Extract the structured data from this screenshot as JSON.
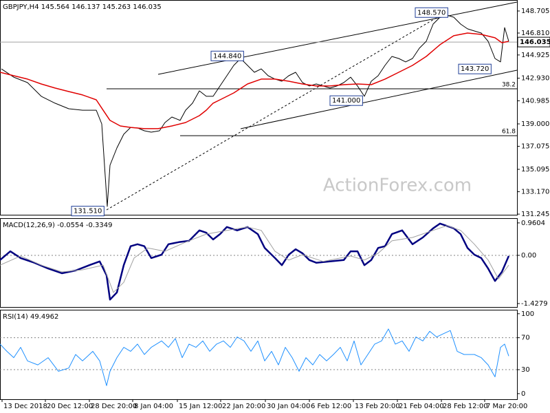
{
  "watermark": "ActionForex.com",
  "chart_data": [
    {
      "type": "line",
      "title": "GBPJPY,H4  145.564 146.137 145.263 146.035",
      "xlim": [
        0,
        188
      ],
      "ylim": [
        131.19,
        149.65
      ],
      "yticks": [
        148.705,
        {
          "value": 146.81,
          "label": "146.810"
        },
        144.925,
        {
          "value": 142.93,
          "label": "142.930"
        },
        140.985,
        {
          "value": 139.0,
          "label": "139.000"
        },
        137.075,
        135.095,
        {
          "value": 133.17,
          "label": "133.170"
        },
        131.245
      ],
      "grid": false,
      "series": [
        {
          "color": "#000000",
          "width": 1,
          "x": [
            0.5,
            5,
            10,
            15,
            20,
            25,
            30,
            35,
            37,
            39,
            40,
            42.5,
            45,
            47.5,
            50,
            52.5,
            55,
            58,
            60,
            62.5,
            65.5,
            67.5,
            70,
            72.5,
            75,
            77.5,
            80,
            82.5,
            85,
            87.5,
            90,
            92.5,
            95,
            97.5,
            100,
            102.5,
            105,
            107.5,
            110,
            112.5,
            115,
            117.5,
            120,
            122.5,
            125,
            127.5,
            130,
            132.5,
            135,
            137.5,
            140,
            142.5,
            145,
            147.5,
            150,
            152.5,
            155,
            157.5,
            160,
            162.5,
            165,
            167.5,
            170,
            172.5,
            175,
            177.5,
            180,
            182,
            183.5,
            185
          ],
          "values": [
            143.73,
            143.02,
            142.55,
            141.37,
            140.78,
            140.3,
            140.18,
            140.18,
            139.0,
            131.9,
            135.45,
            136.93,
            138.11,
            138.7,
            138.65,
            138.41,
            138.29,
            138.41,
            139.12,
            139.59,
            139.3,
            140.18,
            140.78,
            141.84,
            141.37,
            141.37,
            142.26,
            143.14,
            144.03,
            144.62,
            144.03,
            143.44,
            143.73,
            143.14,
            142.85,
            142.67,
            143.14,
            143.44,
            142.55,
            142.26,
            142.43,
            142.26,
            142.08,
            142.26,
            142.55,
            143.02,
            142.26,
            141.37,
            142.67,
            143.14,
            144.03,
            144.8,
            144.62,
            144.33,
            144.62,
            145.51,
            146.1,
            147.58,
            148.17,
            148.35,
            148.17,
            147.58,
            147.17,
            146.99,
            146.81,
            146.1,
            144.62,
            144.33,
            147.28,
            146.1
          ]
        },
        {
          "color": "#e00000",
          "width": 1.5,
          "x": [
            0,
            5,
            10,
            15,
            20,
            25,
            30,
            35,
            37.5,
            40,
            43.75,
            47.5,
            52.5,
            57.5,
            62.5,
            67.5,
            72.5,
            75,
            77.5,
            80,
            85,
            90,
            95,
            100,
            105,
            110,
            115,
            120,
            125,
            130,
            135,
            140,
            145,
            150,
            155,
            160,
            165,
            170,
            175,
            180,
            182.5,
            185
          ],
          "values": [
            143.44,
            143.14,
            142.85,
            142.43,
            142.08,
            141.78,
            141.49,
            141.07,
            140.18,
            139.3,
            138.82,
            138.7,
            138.59,
            138.59,
            138.82,
            139.12,
            139.71,
            140.18,
            140.78,
            141.07,
            141.66,
            142.43,
            142.85,
            142.85,
            142.67,
            142.43,
            142.26,
            142.26,
            142.37,
            142.43,
            142.37,
            142.85,
            143.44,
            144.03,
            144.8,
            145.81,
            146.58,
            146.81,
            146.69,
            146.4,
            145.98,
            146.1
          ]
        }
      ],
      "annotations": [
        {
          "x": 151,
          "value": 148.57,
          "label": "148.570"
        },
        {
          "x": 76.75,
          "value": 144.84,
          "label": "144.840"
        },
        {
          "x": 120,
          "value": 141.0,
          "label": "141.000"
        },
        {
          "x": 166.75,
          "value": 143.72,
          "label": "143.720"
        },
        {
          "x": 26,
          "value": 131.51,
          "label": "131.510"
        }
      ],
      "levels": [
        {
          "x": 38.75,
          "value": 142.02,
          "label": "38.2"
        },
        {
          "x": 65.5,
          "value": 137.99,
          "label": "61.8"
        }
      ],
      "last_price": 146.035
    },
    {
      "type": "line",
      "title": "MACD(12,26,9) -0.0554 -0.3349",
      "xlim": [
        0,
        188
      ],
      "ylim": [
        -1.53,
        1.1
      ],
      "yticks": [
        0.9604,
        {
          "value": 0,
          "label": "0.00"
        },
        -1.4279
      ],
      "grid": true,
      "series": [
        {
          "color": "#000080",
          "width": 2.5,
          "x": [
            0,
            3.75,
            7.5,
            12.5,
            17.5,
            22.5,
            27.5,
            32.5,
            36.25,
            38.75,
            40,
            42.5,
            45,
            47.5,
            50,
            52.5,
            55,
            58.75,
            61.25,
            65,
            68.75,
            72.5,
            75,
            77.5,
            80,
            82.5,
            86.25,
            90,
            93.75,
            96.25,
            100,
            102.5,
            105,
            107.5,
            110,
            112.5,
            115,
            120,
            125,
            127.5,
            130,
            132.5,
            135,
            137.5,
            140,
            142.5,
            146.25,
            150,
            153.75,
            157.5,
            160,
            165,
            167.5,
            170,
            172.5,
            175,
            177.5,
            180,
            182.5,
            185
          ],
          "values": [
            -0.14,
            0.12,
            -0.08,
            -0.22,
            -0.39,
            -0.53,
            -0.45,
            -0.29,
            -0.18,
            -0.59,
            -1.31,
            -1.1,
            -0.29,
            0.27,
            0.33,
            0.27,
            -0.08,
            0.02,
            0.33,
            0.39,
            0.43,
            0.74,
            0.67,
            0.47,
            0.63,
            0.84,
            0.74,
            0.84,
            0.63,
            0.22,
            -0.08,
            -0.29,
            0.02,
            0.18,
            0.06,
            -0.14,
            -0.22,
            -0.18,
            -0.14,
            0.12,
            0.12,
            -0.29,
            -0.14,
            0.22,
            0.27,
            0.63,
            0.74,
            0.33,
            0.53,
            0.8,
            0.94,
            0.8,
            0.63,
            0.22,
            0.02,
            -0.08,
            -0.39,
            -0.76,
            -0.49,
            -0.02
          ]
        },
        {
          "color": "#a0a0a0",
          "width": 1,
          "x": [
            0,
            7.5,
            15,
            22.5,
            30,
            37.5,
            41.25,
            45,
            48.75,
            53.75,
            60,
            67.5,
            75,
            82.5,
            90,
            95,
            100,
            105,
            110,
            117.5,
            127.5,
            132.5,
            137.5,
            142.5,
            150,
            157.5,
            162.5,
            167.5,
            172.5,
            177.5,
            181.25,
            185
          ],
          "values": [
            -0.29,
            -0.02,
            -0.29,
            -0.49,
            -0.43,
            -0.29,
            -1.1,
            -0.8,
            -0.08,
            0.22,
            0.12,
            0.39,
            0.63,
            0.74,
            0.84,
            0.74,
            0.12,
            -0.14,
            0.02,
            -0.18,
            -0.02,
            -0.14,
            0.06,
            0.43,
            0.53,
            0.74,
            0.88,
            0.74,
            0.33,
            -0.14,
            -0.7,
            -0.29
          ]
        }
      ]
    },
    {
      "type": "line",
      "title": "RSI(14) 49.4962",
      "xlim": [
        0,
        188
      ],
      "ylim": [
        -7,
        105
      ],
      "yticks": [
        100,
        70,
        30,
        0
      ],
      "grid": true,
      "xticks": [
        {
          "value": 0.75,
          "label": "13 Dec 2018"
        },
        {
          "value": 16.5,
          "label": "20 Dec 12:00"
        },
        {
          "value": 32.5,
          "label": "28 Dec 20:00"
        },
        {
          "value": 48.25,
          "label": "8 Jan 04:00"
        },
        {
          "value": 64.5,
          "label": "15 Jan 12:00"
        },
        {
          "value": 80.25,
          "label": "22 Jan 20:00"
        },
        {
          "value": 96.5,
          "label": "30 Jan 04:00"
        },
        {
          "value": 112.5,
          "label": "6 Feb 12:00"
        },
        {
          "value": 128.5,
          "label": "13 Feb 20:00"
        },
        {
          "value": 144.5,
          "label": "21 Feb 04:00"
        },
        {
          "value": 160.5,
          "label": "28 Feb 12:00"
        },
        {
          "value": 176.25,
          "label": "7 Mar 20:00"
        }
      ],
      "series": [
        {
          "color": "#1e90ff",
          "width": 1,
          "x": [
            0,
            2.5,
            5,
            7.5,
            10,
            13.75,
            17.5,
            21.25,
            25,
            27.5,
            30,
            33.75,
            36.25,
            38.75,
            40,
            42.5,
            45,
            47.5,
            50,
            52.5,
            55,
            58.75,
            61.25,
            63.75,
            66.25,
            68.75,
            71.25,
            73.75,
            76.25,
            78.75,
            81.25,
            83.75,
            86.25,
            88.75,
            91.25,
            93.75,
            96.25,
            98.75,
            101.25,
            103.75,
            106.25,
            108.75,
            111.25,
            113.75,
            116.25,
            118.75,
            121.25,
            123.75,
            126.25,
            128.75,
            131.25,
            133.75,
            136.25,
            138.75,
            141.25,
            143.75,
            146.25,
            148.75,
            151.25,
            153.75,
            156.25,
            158.75,
            161.25,
            163.75,
            166.25,
            168.75,
            172.5,
            175,
            177.5,
            180,
            182,
            183.5,
            185
          ],
          "values": [
            62,
            53,
            45,
            58,
            41,
            36,
            45,
            28,
            32,
            49,
            41,
            53,
            41,
            10,
            28,
            45,
            58,
            53,
            62,
            49,
            58,
            66,
            58,
            69,
            45,
            62,
            58,
            66,
            53,
            62,
            66,
            58,
            71,
            66,
            53,
            66,
            41,
            53,
            36,
            58,
            45,
            28,
            45,
            36,
            49,
            41,
            49,
            58,
            41,
            66,
            36,
            49,
            62,
            66,
            81,
            62,
            66,
            53,
            71,
            66,
            78,
            71,
            75,
            79,
            53,
            49,
            49,
            45,
            36,
            21,
            58,
            62,
            47
          ]
        }
      ]
    }
  ]
}
